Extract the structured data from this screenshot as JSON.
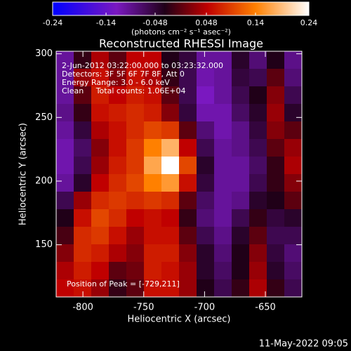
{
  "chart_data": {
    "type": "heatmap",
    "title": "Reconstructed RHESSI Image",
    "xlabel": "Heliocentric X (arcsec)",
    "ylabel": "Heliocentric Y (arcsec)",
    "colorbar_label": "(photons cm⁻² s⁻¹ asec⁻²)",
    "annotations": [
      "2-Jun-2012 03:22:00.000 to 03:23:32.000",
      "Detectors: 3F 5F 6F 7F 8F, Att 0",
      "Energy Range: 3.0 - 6.0 keV",
      "Clean     Total counts: 1.06E+04"
    ],
    "peak_label": "Position of Peak = [-729,211]",
    "timestamp": "11-May-2022 09:05",
    "xlim": [
      -822,
      -620
    ],
    "ylim": [
      109,
      302
    ],
    "xticks": [
      -800,
      -750,
      -700,
      -650
    ],
    "yticks": [
      150,
      200,
      250,
      300
    ],
    "clim": [
      -0.24,
      0.24
    ],
    "cticks": [
      -0.24,
      -0.14,
      -0.048,
      0.048,
      0.14,
      0.24
    ],
    "colorscale": [
      [
        -0.24,
        "#0000ff"
      ],
      [
        -0.12,
        "#7a18c0"
      ],
      [
        -0.03,
        "#200018"
      ],
      [
        0.05,
        "#c00000"
      ],
      [
        0.14,
        "#ff8000"
      ],
      [
        0.24,
        "#ffffff"
      ]
    ],
    "z": [
      [
        -0.1,
        -0.02,
        0.04,
        0,
        0.05,
        0.05,
        -0.03,
        -0.05,
        -0.1,
        -0.1,
        -0.04,
        -0.08,
        -0.03,
        -0.09
      ],
      [
        -0.1,
        0.03,
        0.06,
        0.02,
        0.06,
        0.04,
        -0.02,
        -0.06,
        -0.11,
        -0.1,
        -0.05,
        -0.06,
        0,
        -0.08
      ],
      [
        -0.1,
        0,
        0.07,
        0.05,
        0.07,
        0.06,
        0,
        -0.06,
        -0.12,
        -0.1,
        -0.06,
        -0.03,
        0.02,
        -0.06
      ],
      [
        -0.09,
        -0.02,
        0.06,
        0.07,
        0.08,
        0.07,
        0.02,
        -0.05,
        -0.11,
        -0.11,
        -0.07,
        -0.04,
        0.03,
        -0.04
      ],
      [
        -0.1,
        -0.05,
        0.04,
        0.06,
        0.08,
        0.1,
        0.09,
        0,
        -0.08,
        -0.11,
        -0.09,
        -0.05,
        0.02,
        0
      ],
      [
        -0.11,
        -0.07,
        0.02,
        0.06,
        0.09,
        0.14,
        0.18,
        0.05,
        -0.06,
        -0.1,
        -0.09,
        -0.06,
        0,
        0.03
      ],
      [
        -0.11,
        -0.06,
        0.03,
        0.07,
        0.09,
        0.17,
        0.24,
        0.1,
        -0.04,
        -0.1,
        -0.1,
        -0.07,
        -0.02,
        0.04
      ],
      [
        -0.1,
        -0.04,
        0.05,
        0.08,
        0.1,
        0.14,
        0.16,
        0.06,
        -0.05,
        -0.1,
        -0.1,
        -0.06,
        -0.02,
        0.02
      ],
      [
        -0.06,
        0.03,
        0.08,
        0.09,
        0.08,
        0.09,
        0.08,
        0,
        -0.07,
        -0.1,
        -0.09,
        -0.04,
        -0.03,
        0
      ],
      [
        -0.03,
        0.06,
        0.1,
        0.08,
        0.05,
        0.06,
        0.05,
        -0.02,
        -0.08,
        -0.1,
        -0.06,
        -0.02,
        -0.05,
        -0.04
      ],
      [
        -0.01,
        0.08,
        0.09,
        0.06,
        0.03,
        0.06,
        0.06,
        0,
        -0.06,
        -0.09,
        -0.04,
        0,
        -0.06,
        -0.06
      ],
      [
        0.02,
        0.08,
        0.07,
        0.04,
        0.02,
        0.07,
        0.07,
        0.02,
        -0.04,
        -0.08,
        -0.03,
        0.02,
        -0.05,
        -0.08
      ],
      [
        0.04,
        0.07,
        0.05,
        0,
        0.01,
        0.07,
        0.06,
        0.03,
        -0.04,
        -0.07,
        -0.03,
        0.03,
        -0.04,
        -0.07
      ],
      [
        0.05,
        0.06,
        0.03,
        -0.02,
        0,
        0.06,
        0.06,
        0.03,
        -0.03,
        -0.06,
        -0.02,
        0.04,
        -0.02,
        -0.06
      ]
    ]
  }
}
